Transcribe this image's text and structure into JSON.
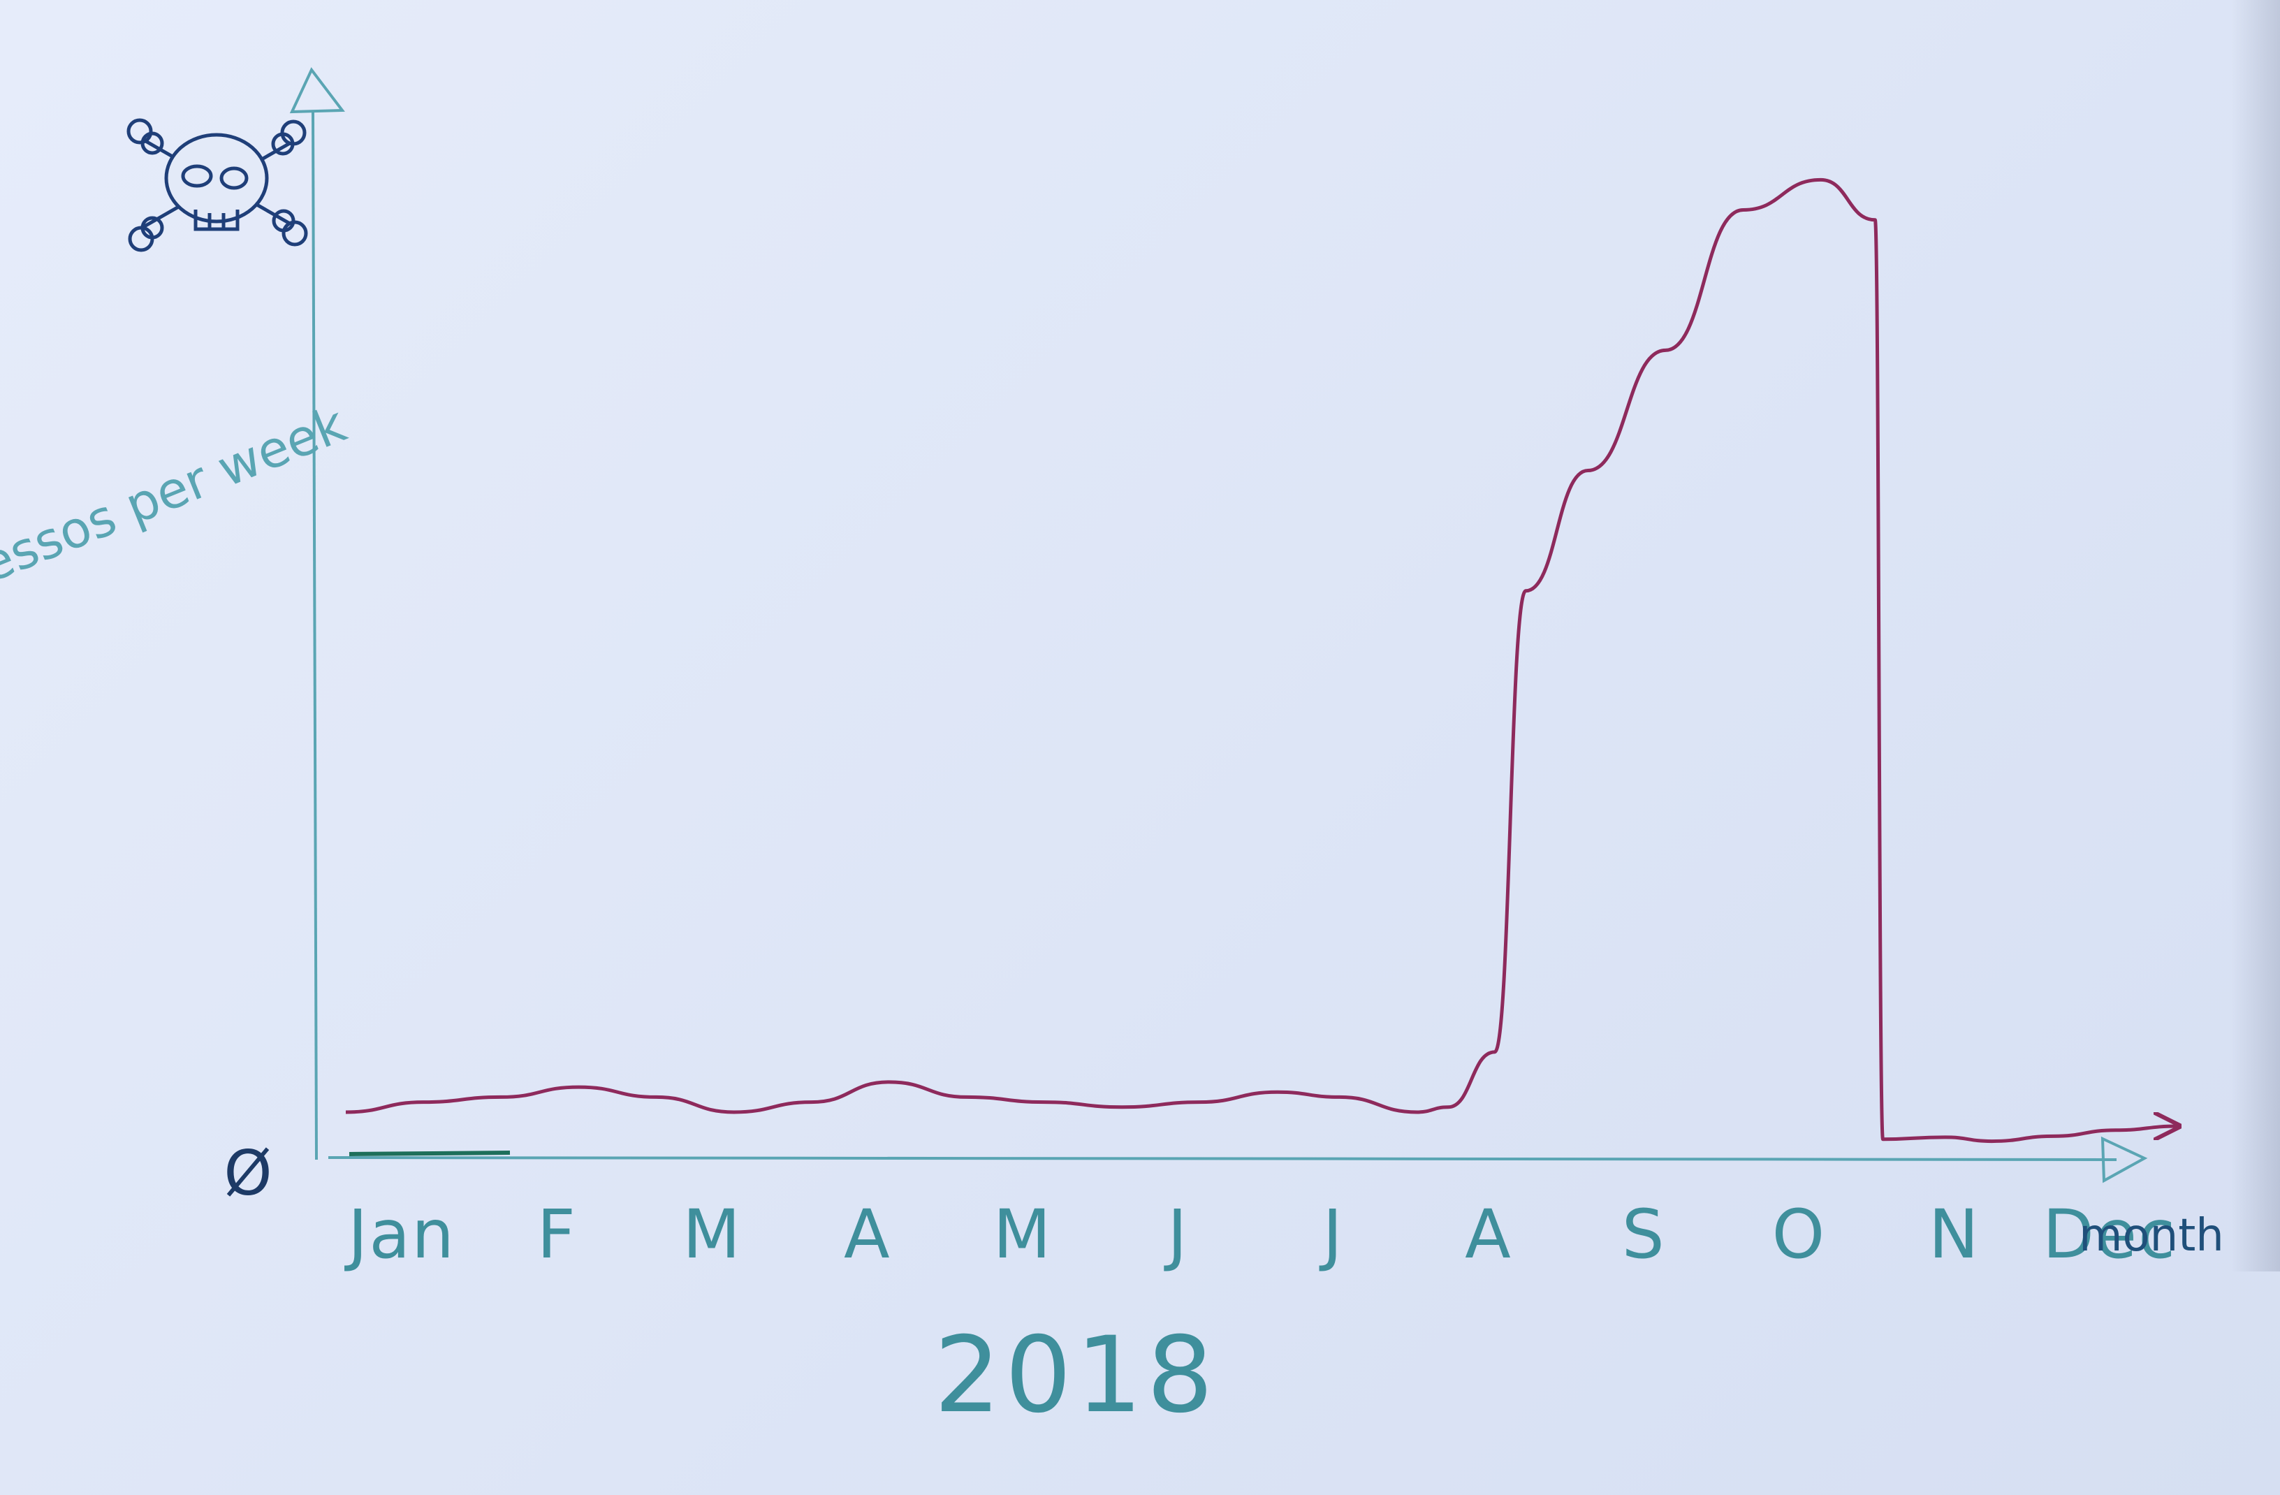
{
  "chart_data": {
    "type": "line",
    "ylabel": "Espressos per week",
    "xlabel": "month",
    "year_label": "2018",
    "y_origin_label": "Ø",
    "y_max_icon": "skull-and-crossbones-icon",
    "categories": [
      "Jan",
      "F",
      "M",
      "A",
      "M",
      "J",
      "J",
      "A",
      "S",
      "O",
      "N",
      "Dec"
    ],
    "ylim": [
      0,
      100
    ],
    "grid": false,
    "legend": "none",
    "series": [
      {
        "color": "#8e2a5c",
        "x": [
          0,
          0.5,
          1.0,
          1.5,
          2.0,
          2.5,
          3.0,
          3.5,
          4.0,
          4.5,
          5.0,
          5.5,
          6.0,
          6.4,
          6.9,
          7.1,
          7.4,
          7.6,
          8.0,
          8.5,
          9.0,
          9.5,
          9.85,
          9.9,
          10.3,
          10.6,
          11.0,
          11.4,
          11.8
        ],
        "y": [
          3,
          4,
          4.5,
          5.5,
          4.5,
          3,
          4,
          6,
          4.5,
          4,
          3.5,
          4,
          5,
          4.5,
          3,
          3.5,
          9,
          55,
          67,
          79,
          93,
          96,
          92,
          0.3,
          0.5,
          0.1,
          0.6,
          1.2,
          1.6
        ]
      }
    ]
  }
}
